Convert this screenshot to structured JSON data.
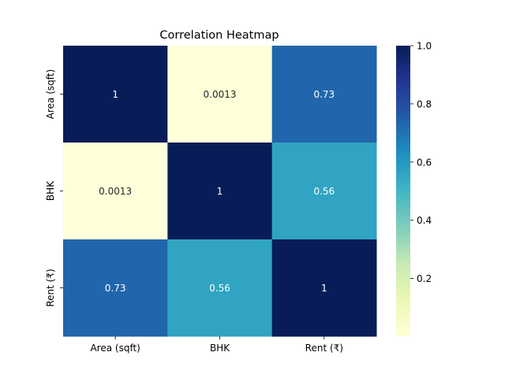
{
  "chart_data": {
    "type": "heatmap",
    "title": "Correlation Heatmap",
    "xlabel": "",
    "ylabel": "",
    "x_categories": [
      "Area (sqft)",
      "BHK",
      "Rent (₹)"
    ],
    "y_categories": [
      "Area (sqft)",
      "BHK",
      "Rent (₹)"
    ],
    "values": [
      [
        1,
        0.0013,
        0.73
      ],
      [
        0.0013,
        1,
        0.56
      ],
      [
        0.73,
        0.56,
        1
      ]
    ],
    "annotations": [
      [
        "1",
        "0.0013",
        "0.73"
      ],
      [
        "0.0013",
        "1",
        "0.56"
      ],
      [
        "0.73",
        "0.56",
        "1"
      ]
    ],
    "colormap": "YlGnBu",
    "colorbar": {
      "range": [
        0.0013,
        1.0
      ],
      "ticks": [
        0.2,
        0.4,
        0.6,
        0.8,
        1.0
      ],
      "tick_labels": [
        "0.2",
        "0.4",
        "0.6",
        "0.8",
        "1.0"
      ]
    },
    "grid": false,
    "colors": {
      "low": "#ffffd9",
      "high": "#081d58",
      "light_text": "#ffffff",
      "dark_text": "#262626"
    }
  }
}
